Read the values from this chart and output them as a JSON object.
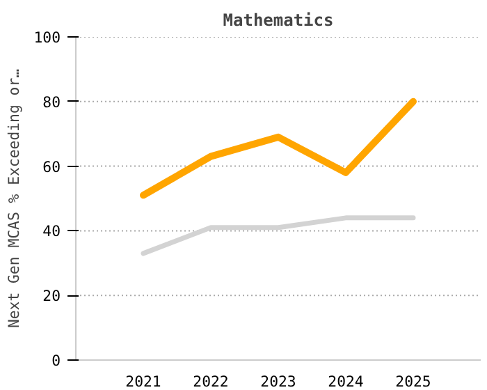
{
  "chart_data": {
    "type": "line",
    "title": "Mathematics",
    "ylabel": "Next Gen MCAS % Exceeding or…",
    "categories": [
      "2021",
      "2022",
      "2023",
      "2024",
      "2025"
    ],
    "series": [
      {
        "color": "#ffa500",
        "values": [
          51,
          63,
          69,
          58,
          80
        ]
      },
      {
        "color": "#d3d3d3",
        "values": [
          33,
          41,
          41,
          44,
          44
        ]
      }
    ],
    "ylim": [
      0,
      100
    ],
    "yticks": [
      0,
      20,
      40,
      60,
      80,
      100
    ],
    "grid": "y",
    "line_style": "solid"
  }
}
